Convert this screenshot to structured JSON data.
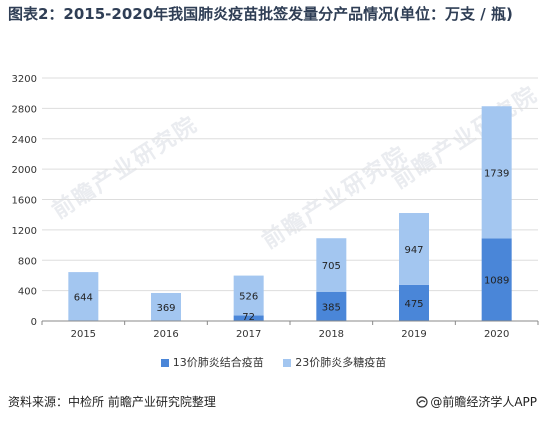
{
  "title": "图表2：2015-2020年我国肺炎疫苗批签发量分产品情况(单位：万支 / 瓶)",
  "source": "资料来源：中检所 前瞻产业研究院整理",
  "logo_text": "@前瞻经济学人APP",
  "watermark": "前瞻产业研究院",
  "colors": {
    "series1": "#4a86d8",
    "series2": "#a3c6f0",
    "grid": "#dddddd",
    "axis": "#888888"
  },
  "chart_data": {
    "type": "bar",
    "stacked": true,
    "categories": [
      "2015",
      "2016",
      "2017",
      "2018",
      "2019",
      "2020"
    ],
    "series": [
      {
        "name": "13价肺炎结合疫苗",
        "values": [
          0,
          0,
          72,
          385,
          475,
          1089
        ],
        "labels": [
          "",
          "",
          "72",
          "385",
          "475",
          "1089"
        ]
      },
      {
        "name": "23价肺炎多糖疫苗",
        "values": [
          644,
          369,
          526,
          705,
          947,
          1739
        ],
        "labels": [
          "644",
          "369",
          "526",
          "705",
          "947",
          "1739"
        ]
      }
    ],
    "ylim": [
      0,
      3200
    ],
    "yticks": [
      "0",
      "400",
      "800",
      "1200",
      "1600",
      "2000",
      "2400",
      "2800",
      "3200"
    ],
    "grid": true,
    "legend_position": "bottom"
  }
}
